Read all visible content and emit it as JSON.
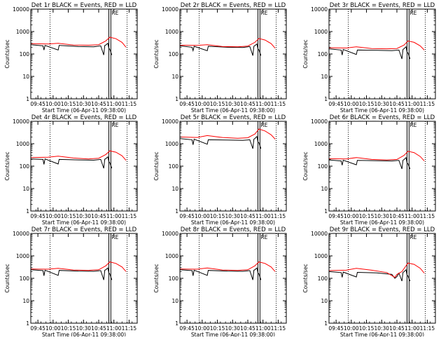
{
  "colors": {
    "background": "#ffffff",
    "axes": "#000000",
    "events": "#000000",
    "lld": "#ff0000",
    "marker": "#000000"
  },
  "common": {
    "ylabel": "Counts/sec",
    "xlabel": "Start Time (06-Apr-11 09:38:00)",
    "x_tick_labels": [
      "09:45",
      "10:00",
      "10:15",
      "10:30",
      "10:45",
      "11:00",
      "11:15"
    ],
    "y_tick_labels": [
      "1",
      "10",
      "100",
      "1000",
      "10000"
    ],
    "y_scale": "log",
    "dotted_verticals": [
      "09:57",
      "11:13"
    ],
    "solid_verticals": [
      "10:55",
      "10:57"
    ],
    "marker_label": "RE"
  },
  "chart_data": [
    {
      "type": "line",
      "title": "Det 1r BLACK = Events, RED = LLD",
      "ylim": [
        1,
        10000
      ],
      "series": [
        {
          "name": "Events",
          "x": [
            "09:38",
            "09:50",
            "09:51",
            "09:52",
            "10:05",
            "10:06",
            "10:25",
            "10:40",
            "10:47",
            "10:50",
            "10:51",
            "10:52",
            "10:54",
            "10:55",
            "10:56",
            "10:58"
          ],
          "values": [
            260,
            230,
            150,
            240,
            150,
            240,
            215,
            210,
            230,
            90,
            240,
            250,
            300,
            180,
            160,
            90
          ]
        },
        {
          "name": "LLD",
          "x": [
            "09:38",
            "09:55",
            "10:05",
            "10:20",
            "10:35",
            "10:45",
            "10:52",
            "10:56",
            "11:02",
            "11:08",
            "11:12"
          ],
          "values": [
            290,
            280,
            300,
            250,
            245,
            260,
            380,
            560,
            480,
            330,
            200
          ]
        }
      ]
    },
    {
      "type": "line",
      "title": "Det 2r BLACK = Events, RED = LLD",
      "ylim": [
        1,
        10000
      ],
      "series": [
        {
          "name": "Events",
          "x": [
            "09:38",
            "09:50",
            "09:51",
            "09:52",
            "10:05",
            "10:06",
            "10:25",
            "10:40",
            "10:47",
            "10:50",
            "10:51",
            "10:52",
            "10:54",
            "10:55",
            "10:56",
            "10:58"
          ],
          "values": [
            230,
            200,
            140,
            220,
            140,
            220,
            200,
            195,
            215,
            85,
            220,
            235,
            280,
            170,
            150,
            85
          ]
        },
        {
          "name": "LLD",
          "x": [
            "09:38",
            "09:55",
            "10:05",
            "10:20",
            "10:35",
            "10:45",
            "10:52",
            "10:56",
            "11:02",
            "11:08",
            "11:12"
          ],
          "values": [
            245,
            240,
            260,
            215,
            210,
            225,
            330,
            490,
            420,
            290,
            180
          ]
        }
      ]
    },
    {
      "type": "line",
      "title": "Det 3r BLACK = Events, RED = LLD",
      "ylim": [
        1,
        10000
      ],
      "series": [
        {
          "name": "Events",
          "x": [
            "09:38",
            "09:50",
            "09:51",
            "09:52",
            "10:05",
            "10:06",
            "10:25",
            "10:40",
            "10:47",
            "10:50",
            "10:51",
            "10:52",
            "10:54",
            "10:55",
            "10:56",
            "10:58"
          ],
          "values": [
            170,
            150,
            90,
            160,
            95,
            150,
            145,
            140,
            150,
            60,
            160,
            170,
            210,
            120,
            110,
            60
          ]
        },
        {
          "name": "LLD",
          "x": [
            "09:38",
            "09:55",
            "10:05",
            "10:20",
            "10:35",
            "10:45",
            "10:52",
            "10:56",
            "11:02",
            "11:08",
            "11:12"
          ],
          "values": [
            190,
            185,
            210,
            175,
            170,
            175,
            250,
            380,
            330,
            230,
            150
          ]
        }
      ]
    },
    {
      "type": "line",
      "title": "Det 4r BLACK = Events, RED = LLD",
      "ylim": [
        1,
        10000
      ],
      "series": [
        {
          "name": "Events",
          "x": [
            "09:38",
            "09:50",
            "09:51",
            "09:52",
            "10:05",
            "10:06",
            "10:25",
            "10:40",
            "10:47",
            "10:50",
            "10:51",
            "10:52",
            "10:54",
            "10:55",
            "10:56",
            "10:58"
          ],
          "values": [
            210,
            200,
            120,
            210,
            125,
            200,
            190,
            185,
            200,
            80,
            205,
            215,
            260,
            160,
            140,
            80
          ]
        },
        {
          "name": "LLD",
          "x": [
            "09:38",
            "09:55",
            "10:05",
            "10:20",
            "10:35",
            "10:45",
            "10:52",
            "10:56",
            "11:02",
            "11:08",
            "11:12"
          ],
          "values": [
            240,
            250,
            280,
            230,
            210,
            225,
            330,
            480,
            420,
            290,
            180
          ]
        }
      ]
    },
    {
      "type": "line",
      "title": "Det 5r BLACK = Events, RED = LLD",
      "ylim": [
        1,
        10000
      ],
      "series": [
        {
          "name": "Events",
          "x": [
            "09:38",
            "09:50",
            "09:51",
            "09:52",
            "10:05",
            "10:06",
            "10:25",
            "10:40",
            "10:47",
            "10:50",
            "10:51",
            "10:52",
            "10:54",
            "10:55",
            "10:56",
            "10:58"
          ],
          "values": [
            1700,
            1500,
            900,
            1600,
            950,
            1500,
            1450,
            1400,
            1500,
            600,
            1600,
            1700,
            2100,
            1200,
            1100,
            600
          ]
        },
        {
          "name": "LLD",
          "x": [
            "09:38",
            "09:55",
            "10:05",
            "10:20",
            "10:35",
            "10:45",
            "10:52",
            "10:56",
            "11:02",
            "11:08",
            "11:12"
          ],
          "values": [
            2000,
            1900,
            2300,
            1900,
            1750,
            1850,
            2700,
            4500,
            3700,
            2500,
            1600
          ]
        }
      ]
    },
    {
      "type": "line",
      "title": "Det 6r BLACK = Events, RED = LLD",
      "ylim": [
        1,
        10000
      ],
      "series": [
        {
          "name": "Events",
          "x": [
            "09:38",
            "09:50",
            "09:51",
            "09:52",
            "10:05",
            "10:06",
            "10:25",
            "10:40",
            "10:47",
            "10:50",
            "10:51",
            "10:52",
            "10:54",
            "10:55",
            "10:56",
            "10:58"
          ],
          "values": [
            190,
            170,
            110,
            185,
            115,
            180,
            175,
            170,
            180,
            75,
            185,
            195,
            240,
            140,
            125,
            75
          ]
        },
        {
          "name": "LLD",
          "x": [
            "09:38",
            "09:55",
            "10:05",
            "10:20",
            "10:35",
            "10:45",
            "10:52",
            "10:56",
            "11:02",
            "11:08",
            "11:12"
          ],
          "values": [
            215,
            210,
            240,
            200,
            190,
            200,
            300,
            460,
            400,
            270,
            170
          ]
        }
      ]
    },
    {
      "type": "line",
      "title": "Det 7r BLACK = Events, RED = LLD",
      "ylim": [
        1,
        10000
      ],
      "series": [
        {
          "name": "Events",
          "x": [
            "09:38",
            "09:50",
            "09:51",
            "09:52",
            "10:05",
            "10:06",
            "10:25",
            "10:40",
            "10:47",
            "10:50",
            "10:51",
            "10:52",
            "10:54",
            "10:55",
            "10:56",
            "10:58"
          ],
          "values": [
            240,
            220,
            130,
            230,
            135,
            225,
            210,
            205,
            220,
            85,
            230,
            240,
            290,
            175,
            155,
            85
          ]
        },
        {
          "name": "LLD",
          "x": [
            "09:38",
            "09:55",
            "10:05",
            "10:20",
            "10:35",
            "10:45",
            "10:52",
            "10:56",
            "11:02",
            "11:08",
            "11:12"
          ],
          "values": [
            260,
            255,
            280,
            235,
            225,
            240,
            360,
            540,
            460,
            320,
            200
          ]
        }
      ]
    },
    {
      "type": "line",
      "title": "Det 8r BLACK = Events, RED = LLD",
      "ylim": [
        1,
        10000
      ],
      "series": [
        {
          "name": "Events",
          "x": [
            "09:38",
            "09:50",
            "09:51",
            "09:52",
            "10:05",
            "10:06",
            "10:25",
            "10:40",
            "10:47",
            "10:50",
            "10:51",
            "10:52",
            "10:54",
            "10:55",
            "10:56",
            "10:58"
          ],
          "values": [
            240,
            220,
            130,
            230,
            135,
            225,
            210,
            205,
            220,
            85,
            230,
            240,
            290,
            175,
            155,
            85
          ]
        },
        {
          "name": "LLD",
          "x": [
            "09:38",
            "09:55",
            "10:05",
            "10:20",
            "10:35",
            "10:45",
            "10:52",
            "10:56",
            "11:02",
            "11:08",
            "11:12"
          ],
          "values": [
            260,
            255,
            290,
            235,
            225,
            240,
            360,
            540,
            460,
            320,
            200
          ]
        }
      ]
    },
    {
      "type": "line",
      "title": "Det 9r BLACK = Events, RED = LLD",
      "ylim": [
        1,
        10000
      ],
      "series": [
        {
          "name": "Events",
          "x": [
            "09:38",
            "09:50",
            "09:51",
            "09:52",
            "10:05",
            "10:06",
            "10:25",
            "10:40",
            "10:43",
            "10:45",
            "10:47",
            "10:50",
            "10:51",
            "10:52",
            "10:54",
            "10:55",
            "10:56",
            "10:58"
          ],
          "values": [
            200,
            180,
            110,
            190,
            115,
            185,
            175,
            150,
            100,
            120,
            170,
            75,
            185,
            195,
            240,
            140,
            125,
            75
          ]
        },
        {
          "name": "LLD",
          "x": [
            "09:38",
            "09:55",
            "10:05",
            "10:20",
            "10:35",
            "10:43",
            "10:45",
            "10:50",
            "10:56",
            "11:02",
            "11:08",
            "11:12"
          ],
          "values": [
            220,
            230,
            280,
            230,
            180,
            110,
            150,
            200,
            480,
            420,
            280,
            170
          ]
        }
      ]
    }
  ]
}
